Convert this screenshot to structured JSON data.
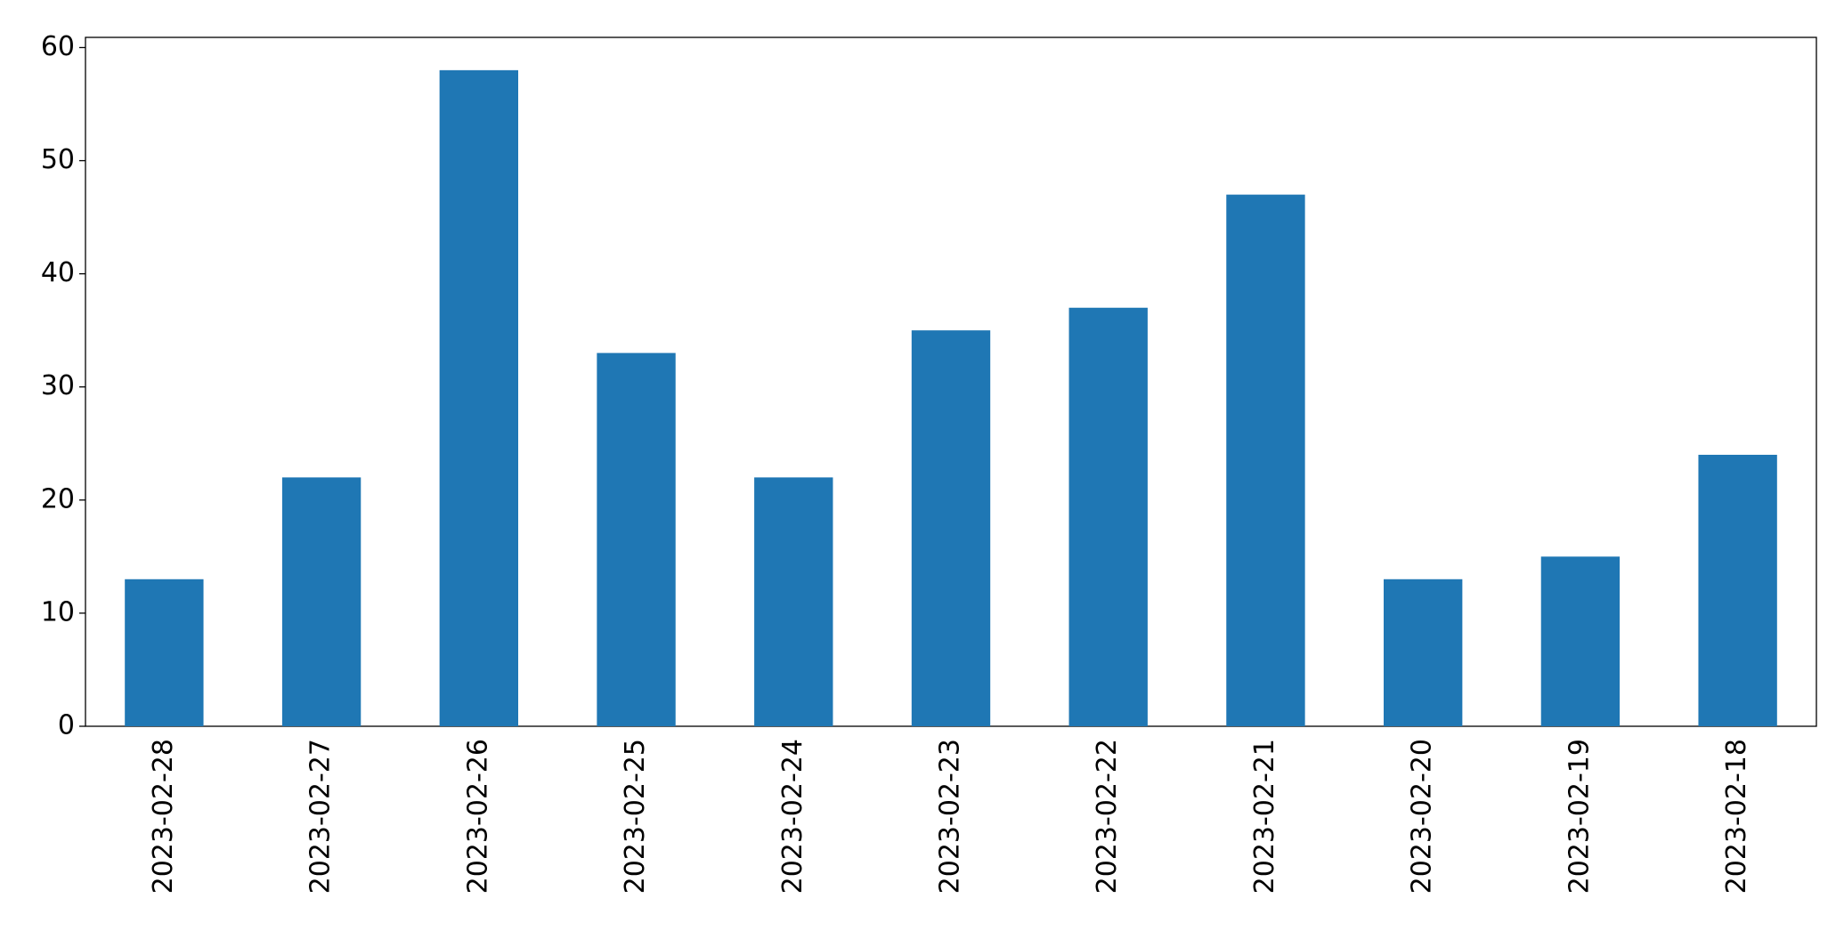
{
  "chart_data": {
    "type": "bar",
    "categories": [
      "2023-02-28",
      "2023-02-27",
      "2023-02-26",
      "2023-02-25",
      "2023-02-24",
      "2023-02-23",
      "2023-02-22",
      "2023-02-21",
      "2023-02-20",
      "2023-02-19",
      "2023-02-18"
    ],
    "values": [
      13,
      22,
      58,
      33,
      22,
      35,
      37,
      47,
      13,
      15,
      24
    ],
    "color": "#1f77b4",
    "ylim": [
      0,
      60.9
    ],
    "yticks": [
      0,
      10,
      20,
      30,
      40,
      50,
      60
    ],
    "grid": false
  }
}
